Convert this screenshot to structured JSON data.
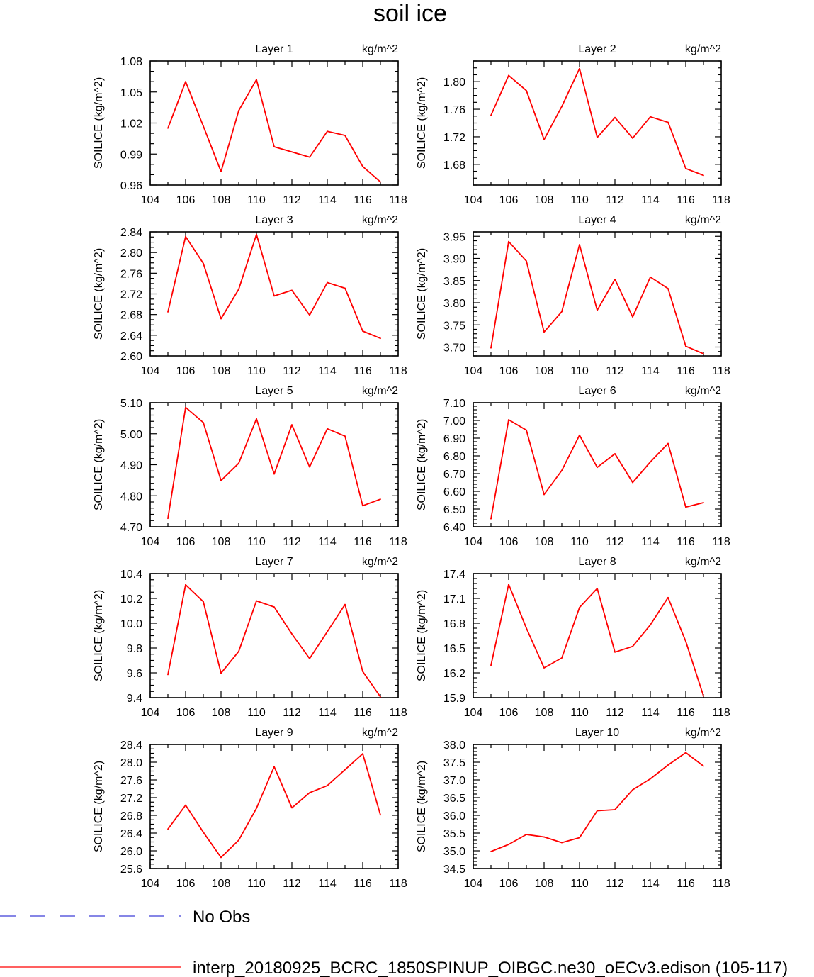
{
  "figure": {
    "title": "soil ice",
    "legend": [
      {
        "label": "No Obs",
        "color": "#3f3fd8",
        "dash": true
      },
      {
        "label": "interp_20180925_BCRC_1850SPINUP_OIBGC.ne30_oECv3.edison (105-117)",
        "color": "#ff0000",
        "dash": false
      }
    ]
  },
  "chart_data": [
    {
      "type": "line",
      "title": "Layer 1",
      "units": "kg/m^2",
      "xlabel": "",
      "ylabel": "SOILICE  (kg/m^2)",
      "xlim": [
        104,
        118
      ],
      "xticks": [
        104,
        106,
        108,
        110,
        112,
        114,
        116,
        118
      ],
      "ylim": [
        0.96,
        1.08
      ],
      "yticks": [
        "0.96",
        "0.99",
        "1.02",
        "1.05",
        "1.08"
      ],
      "yminor": 3,
      "x": [
        105,
        106,
        107,
        108,
        109,
        110,
        111,
        112,
        113,
        114,
        115,
        116,
        117
      ],
      "series": [
        {
          "name": "interp_20180925_BCRC_1850SPINUP_OIBGC.ne30_oECv3.edison (105-117)",
          "color": "#ff0000",
          "values": [
            1.015,
            1.06,
            1.017,
            0.973,
            1.032,
            1.062,
            0.997,
            0.992,
            0.987,
            1.012,
            1.008,
            0.978,
            0.963
          ]
        }
      ]
    },
    {
      "type": "line",
      "title": "Layer 2",
      "units": "kg/m^2",
      "xlabel": "",
      "ylabel": "SOILICE  (kg/m^2)",
      "xlim": [
        104,
        118
      ],
      "xticks": [
        104,
        106,
        108,
        110,
        112,
        114,
        116,
        118
      ],
      "ylim": [
        1.65,
        1.83
      ],
      "yticks": [
        "1.68",
        "1.72",
        "1.76",
        "1.80"
      ],
      "yminor": 4,
      "x": [
        105,
        106,
        107,
        108,
        109,
        110,
        111,
        112,
        113,
        114,
        115,
        116,
        117
      ],
      "series": [
        {
          "name": "interp_20180925_BCRC_1850SPINUP_OIBGC.ne30_oECv3.edison (105-117)",
          "color": "#ff0000",
          "values": [
            1.751,
            1.809,
            1.787,
            1.716,
            1.764,
            1.819,
            1.719,
            1.748,
            1.718,
            1.749,
            1.741,
            1.674,
            1.664
          ]
        }
      ]
    },
    {
      "type": "line",
      "title": "Layer 3",
      "units": "kg/m^2",
      "xlabel": "",
      "ylabel": "SOILICE  (kg/m^2)",
      "xlim": [
        104,
        118
      ],
      "xticks": [
        104,
        106,
        108,
        110,
        112,
        114,
        116,
        118
      ],
      "ylim": [
        2.6,
        2.84
      ],
      "yticks": [
        "2.60",
        "2.64",
        "2.68",
        "2.72",
        "2.76",
        "2.80",
        "2.84"
      ],
      "yminor": 4,
      "x": [
        105,
        106,
        107,
        108,
        109,
        110,
        111,
        112,
        113,
        114,
        115,
        116,
        117
      ],
      "series": [
        {
          "name": "interp_20180925_BCRC_1850SPINUP_OIBGC.ne30_oECv3.edison (105-117)",
          "color": "#ff0000",
          "values": [
            2.685,
            2.831,
            2.779,
            2.672,
            2.729,
            2.835,
            2.716,
            2.727,
            2.679,
            2.742,
            2.731,
            2.648,
            2.634
          ]
        }
      ]
    },
    {
      "type": "line",
      "title": "Layer 4",
      "units": "kg/m^2",
      "xlabel": "",
      "ylabel": "SOILICE  (kg/m^2)",
      "xlim": [
        104,
        118
      ],
      "xticks": [
        104,
        106,
        108,
        110,
        112,
        114,
        116,
        118
      ],
      "ylim": [
        3.68,
        3.96
      ],
      "yticks": [
        "3.70",
        "3.75",
        "3.80",
        "3.85",
        "3.90",
        "3.95"
      ],
      "yminor": 5,
      "x": [
        105,
        106,
        107,
        108,
        109,
        110,
        111,
        112,
        113,
        114,
        115,
        116,
        117
      ],
      "series": [
        {
          "name": "interp_20180925_BCRC_1850SPINUP_OIBGC.ne30_oECv3.edison (105-117)",
          "color": "#ff0000",
          "values": [
            3.698,
            3.938,
            3.894,
            3.734,
            3.78,
            3.931,
            3.783,
            3.853,
            3.768,
            3.858,
            3.832,
            3.702,
            3.685
          ]
        }
      ]
    },
    {
      "type": "line",
      "title": "Layer 5",
      "units": "kg/m^2",
      "xlabel": "",
      "ylabel": "SOILICE  (kg/m^2)",
      "xlim": [
        104,
        118
      ],
      "xticks": [
        104,
        106,
        108,
        110,
        112,
        114,
        116,
        118
      ],
      "ylim": [
        4.7,
        5.1
      ],
      "yticks": [
        "4.70",
        "4.80",
        "4.90",
        "5.00",
        "5.10"
      ],
      "yminor": 5,
      "x": [
        105,
        106,
        107,
        108,
        109,
        110,
        111,
        112,
        113,
        114,
        115,
        116,
        117
      ],
      "series": [
        {
          "name": "interp_20180925_BCRC_1850SPINUP_OIBGC.ne30_oECv3.edison (105-117)",
          "color": "#ff0000",
          "values": [
            4.727,
            5.085,
            5.036,
            4.849,
            4.905,
            5.048,
            4.87,
            5.029,
            4.893,
            5.016,
            4.992,
            4.768,
            4.789
          ]
        }
      ]
    },
    {
      "type": "line",
      "title": "Layer 6",
      "units": "kg/m^2",
      "xlabel": "",
      "ylabel": "SOILICE  (kg/m^2)",
      "xlim": [
        104,
        118
      ],
      "xticks": [
        104,
        106,
        108,
        110,
        112,
        114,
        116,
        118
      ],
      "ylim": [
        6.4,
        7.1
      ],
      "yticks": [
        "6.40",
        "6.50",
        "6.60",
        "6.70",
        "6.80",
        "6.90",
        "7.00",
        "7.10"
      ],
      "yminor": 5,
      "x": [
        105,
        106,
        107,
        108,
        109,
        110,
        111,
        112,
        113,
        114,
        115,
        116,
        117
      ],
      "series": [
        {
          "name": "interp_20180925_BCRC_1850SPINUP_OIBGC.ne30_oECv3.edison (105-117)",
          "color": "#ff0000",
          "values": [
            6.445,
            7.004,
            6.945,
            6.582,
            6.718,
            6.917,
            6.735,
            6.812,
            6.65,
            6.766,
            6.87,
            6.511,
            6.536
          ]
        }
      ]
    },
    {
      "type": "line",
      "title": "Layer 7",
      "units": "kg/m^2",
      "xlabel": "",
      "ylabel": "SOILICE  (kg/m^2)",
      "xlim": [
        104,
        118
      ],
      "xticks": [
        104,
        106,
        108,
        110,
        112,
        114,
        116,
        118
      ],
      "ylim": [
        9.4,
        10.4
      ],
      "yticks": [
        "9.4",
        "9.6",
        "9.8",
        "10.0",
        "10.2",
        "10.4"
      ],
      "yminor": 4,
      "x": [
        105,
        106,
        107,
        108,
        109,
        110,
        111,
        112,
        113,
        114,
        115,
        116,
        117
      ],
      "series": [
        {
          "name": "interp_20180925_BCRC_1850SPINUP_OIBGC.ne30_oECv3.edison (105-117)",
          "color": "#ff0000",
          "values": [
            9.586,
            10.31,
            10.174,
            9.597,
            9.773,
            10.18,
            10.131,
            9.914,
            9.715,
            9.932,
            10.151,
            9.611,
            9.406
          ]
        }
      ]
    },
    {
      "type": "line",
      "title": "Layer 8",
      "units": "kg/m^2",
      "xlabel": "",
      "ylabel": "SOILICE  (kg/m^2)",
      "xlim": [
        104,
        118
      ],
      "xticks": [
        104,
        106,
        108,
        110,
        112,
        114,
        116,
        118
      ],
      "ylim": [
        15.9,
        17.4
      ],
      "yticks": [
        "15.9",
        "16.2",
        "16.5",
        "16.8",
        "17.1",
        "17.4"
      ],
      "yminor": 5,
      "x": [
        105,
        106,
        107,
        108,
        109,
        110,
        111,
        112,
        113,
        114,
        115,
        116,
        117
      ],
      "series": [
        {
          "name": "interp_20180925_BCRC_1850SPINUP_OIBGC.ne30_oECv3.edison (105-117)",
          "color": "#ff0000",
          "values": [
            16.29,
            17.27,
            16.74,
            16.26,
            16.38,
            16.99,
            17.22,
            16.45,
            16.52,
            16.78,
            17.11,
            16.58,
            15.92
          ]
        }
      ]
    },
    {
      "type": "line",
      "title": "Layer 9",
      "units": "kg/m^2",
      "xlabel": "",
      "ylabel": "SOILICE  (kg/m^2)",
      "xlim": [
        104,
        118
      ],
      "xticks": [
        104,
        106,
        108,
        110,
        112,
        114,
        116,
        118
      ],
      "ylim": [
        25.6,
        28.4
      ],
      "yticks": [
        "25.6",
        "26.0",
        "26.4",
        "26.8",
        "27.2",
        "27.6",
        "28.0",
        "28.4"
      ],
      "yminor": 4,
      "x": [
        105,
        106,
        107,
        108,
        109,
        110,
        111,
        112,
        113,
        114,
        115,
        116,
        117
      ],
      "series": [
        {
          "name": "interp_20180925_BCRC_1850SPINUP_OIBGC.ne30_oECv3.edison (105-117)",
          "color": "#ff0000",
          "values": [
            26.49,
            27.03,
            26.42,
            25.85,
            26.24,
            26.96,
            27.9,
            26.97,
            27.31,
            27.47,
            27.83,
            28.19,
            26.81
          ]
        }
      ]
    },
    {
      "type": "line",
      "title": "Layer 10",
      "units": "kg/m^2",
      "xlabel": "",
      "ylabel": "SOILICE  (kg/m^2)",
      "xlim": [
        104,
        118
      ],
      "xticks": [
        104,
        106,
        108,
        110,
        112,
        114,
        116,
        118
      ],
      "ylim": [
        34.5,
        38.0
      ],
      "yticks": [
        "34.5",
        "35.0",
        "35.5",
        "36.0",
        "36.5",
        "37.0",
        "37.5",
        "38.0"
      ],
      "yminor": 5,
      "x": [
        105,
        106,
        107,
        108,
        109,
        110,
        111,
        112,
        113,
        114,
        115,
        116,
        117
      ],
      "series": [
        {
          "name": "interp_20180925_BCRC_1850SPINUP_OIBGC.ne30_oECv3.edison (105-117)",
          "color": "#ff0000",
          "values": [
            34.98,
            35.18,
            35.46,
            35.39,
            35.23,
            35.37,
            36.13,
            36.16,
            36.72,
            37.03,
            37.42,
            37.77,
            37.39
          ]
        }
      ]
    }
  ]
}
